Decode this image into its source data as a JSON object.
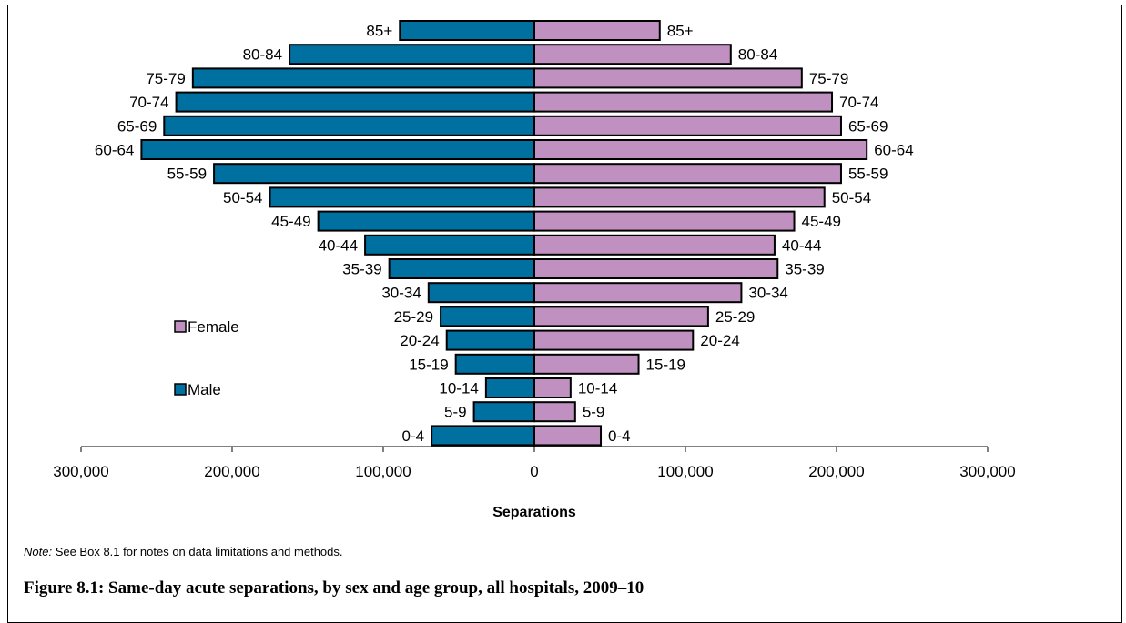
{
  "chart_data": {
    "type": "bar",
    "orientation": "horizontal-population-pyramid",
    "categories": [
      "0-4",
      "5-9",
      "10-14",
      "15-19",
      "20-24",
      "25-29",
      "30-34",
      "35-39",
      "40-44",
      "45-49",
      "50-54",
      "55-59",
      "60-64",
      "65-69",
      "70-74",
      "75-79",
      "80-84",
      "85+"
    ],
    "series": [
      {
        "name": "Male",
        "color": "#0070a0",
        "values": [
          68000,
          40000,
          32000,
          52000,
          58000,
          62000,
          70000,
          96000,
          112000,
          143000,
          175000,
          212000,
          260000,
          245000,
          237000,
          226000,
          162000,
          89000
        ]
      },
      {
        "name": "Female",
        "color": "#c090c0",
        "values": [
          44000,
          27000,
          24000,
          69000,
          105000,
          115000,
          137000,
          161000,
          159000,
          172000,
          192000,
          203000,
          220000,
          203000,
          197000,
          177000,
          130000,
          83000
        ]
      }
    ],
    "xlabel": "Separations",
    "xlim": [
      -300000,
      300000
    ],
    "x_ticks": [
      "300,000",
      "200,000",
      "100,000",
      "0",
      "100,000",
      "200,000",
      "300,000"
    ],
    "legend_position": "left"
  },
  "note": {
    "prefix": "Note:",
    "text": " See Box 8.1 for notes on data limitations and methods."
  },
  "caption": "Figure 8.1: Same-day acute separations, by sex and age group, all hospitals, 2009–10"
}
